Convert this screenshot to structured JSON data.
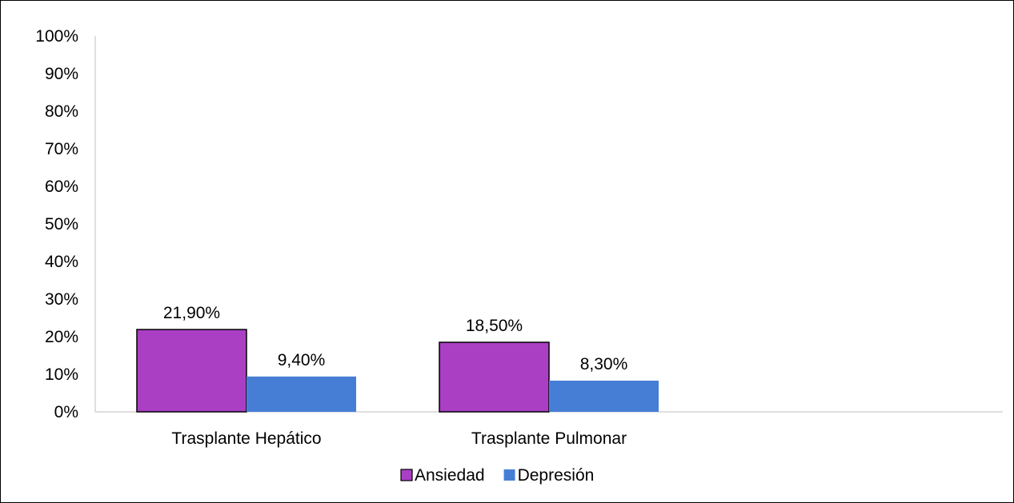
{
  "chart_data": {
    "type": "bar",
    "categories": [
      "Trasplante Hepático",
      "Trasplante Pulmonar"
    ],
    "series": [
      {
        "name": "Ansiedad",
        "values": [
          21.9,
          18.5
        ],
        "labels": [
          "21,90%",
          "18,50%"
        ],
        "color": "#ab3fc4"
      },
      {
        "name": "Depresión",
        "values": [
          9.4,
          8.3
        ],
        "labels": [
          "9,40%",
          "8,30%"
        ],
        "color": "#467ed6"
      }
    ],
    "y_ticks": [
      "0%",
      "10%",
      "20%",
      "30%",
      "40%",
      "50%",
      "60%",
      "70%",
      "80%",
      "90%",
      "100%"
    ],
    "ylim": [
      0,
      100
    ],
    "grid": false,
    "legend_position": "bottom",
    "title": "",
    "xlabel": "",
    "ylabel": ""
  }
}
